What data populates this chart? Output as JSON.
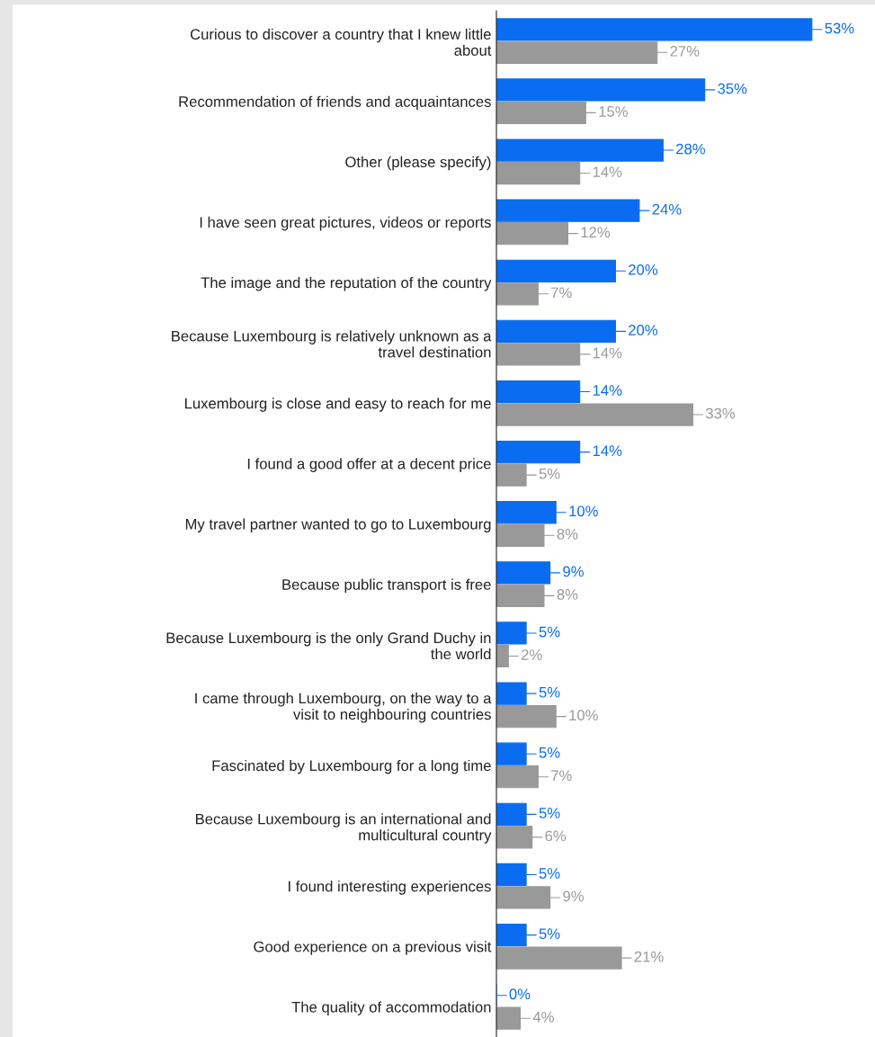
{
  "chart_data": {
    "type": "bar",
    "orientation": "horizontal",
    "categories": [
      "Curious to discover a country that I knew little\nabout",
      "Recommendation of friends and acquaintances",
      "Other (please specify)",
      "I have seen great pictures, videos or reports",
      "The image and the reputation of the country",
      "Because Luxembourg is relatively unknown as a\ntravel destination",
      "Luxembourg is close and easy to reach for me",
      "I found a good offer at a decent price",
      "My travel partner wanted to go to Luxembourg",
      "Because public transport is free",
      "Because Luxembourg is the only Grand Duchy in\nthe world",
      "I came through Luxembourg, on the way to a\nvisit to neighbouring countries",
      "Fascinated by Luxembourg for a long time",
      "Because Luxembourg is an international and\nmulticultural country",
      "I found interesting experiences",
      "Good experience on a previous visit",
      "The quality of accommodation"
    ],
    "series": [
      {
        "color": "#0a6cf0",
        "values": [
          53,
          35,
          28,
          24,
          20,
          20,
          14,
          14,
          10,
          9,
          5,
          5,
          5,
          5,
          5,
          5,
          0
        ],
        "value_labels": [
          "53%",
          "35%",
          "28%",
          "24%",
          "20%",
          "20%",
          "14%",
          "14%",
          "10%",
          "9%",
          "5%",
          "5%",
          "5%",
          "5%",
          "5%",
          "5%",
          "0%"
        ]
      },
      {
        "color": "#999999",
        "values": [
          27,
          15,
          14,
          12,
          7,
          14,
          33,
          5,
          8,
          8,
          2,
          10,
          7,
          6,
          9,
          21,
          4
        ],
        "value_labels": [
          "27%",
          "15%",
          "14%",
          "12%",
          "7%",
          "14%",
          "33%",
          "5%",
          "8%",
          "8%",
          "2%",
          "10%",
          "7%",
          "6%",
          "9%",
          "21%",
          "4%"
        ]
      }
    ],
    "grid": false
  }
}
